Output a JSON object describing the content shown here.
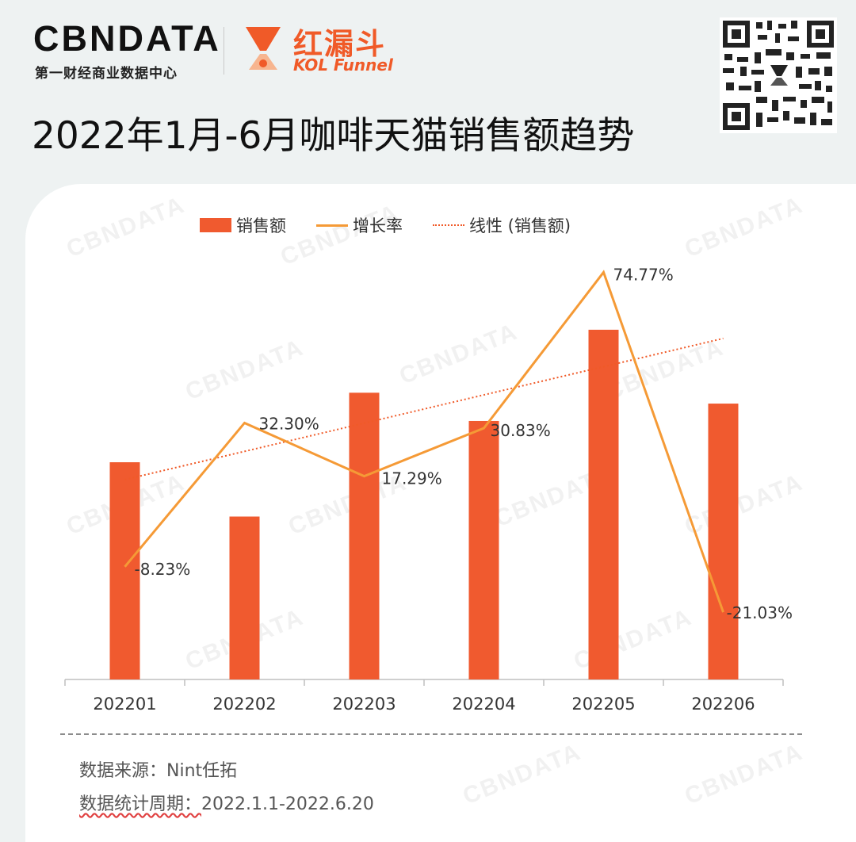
{
  "header": {
    "brand": "CBNDATA",
    "brand_subtitle": "第一财经商业数据中心",
    "partner_cn": "红漏斗",
    "partner_en": "KOL Funnel",
    "title": "2022年1月-6月咖啡天猫销售额趋势"
  },
  "legend": {
    "bar": "销售额",
    "line": "增长率",
    "trend": "线性 (销售额)"
  },
  "footer": {
    "source_label": "数据来源：",
    "source_prefix": "Nint",
    "source_suffix": "任拓",
    "period_label": "数据统计周期：",
    "period_value": "2022.1.1-2022.6.20"
  },
  "chart_data": {
    "type": "bar",
    "title": "2022年1月-6月咖啡天猫销售额趋势",
    "categories": [
      "202201",
      "202202",
      "202203",
      "202204",
      "202205",
      "202206"
    ],
    "series": [
      {
        "name": "销售额",
        "type": "bar",
        "unit": "relative index (202201 = 100), estimated from bar heights",
        "values": [
          100,
          75,
          132,
          119,
          161,
          127
        ]
      },
      {
        "name": "增长率",
        "type": "line",
        "unit": "%",
        "values": [
          -8.23,
          32.3,
          17.29,
          30.83,
          74.77,
          -21.03
        ]
      },
      {
        "name": "线性 (销售额)",
        "type": "trendline",
        "values": [
          92,
          105,
          118,
          131,
          144,
          157
        ]
      }
    ],
    "data_labels": [
      "-8.23%",
      "32.30%",
      "17.29%",
      "30.83%",
      "74.77%",
      "-21.03%"
    ],
    "ylim_sales": [
      0,
      196
    ],
    "ylim_growth": [
      -40,
      80
    ],
    "grid": false,
    "legend_position": "top"
  },
  "colors": {
    "bar": "#f05a2f",
    "line": "#f59a36",
    "trend": "#f05a28",
    "accent": "#f05a28"
  }
}
